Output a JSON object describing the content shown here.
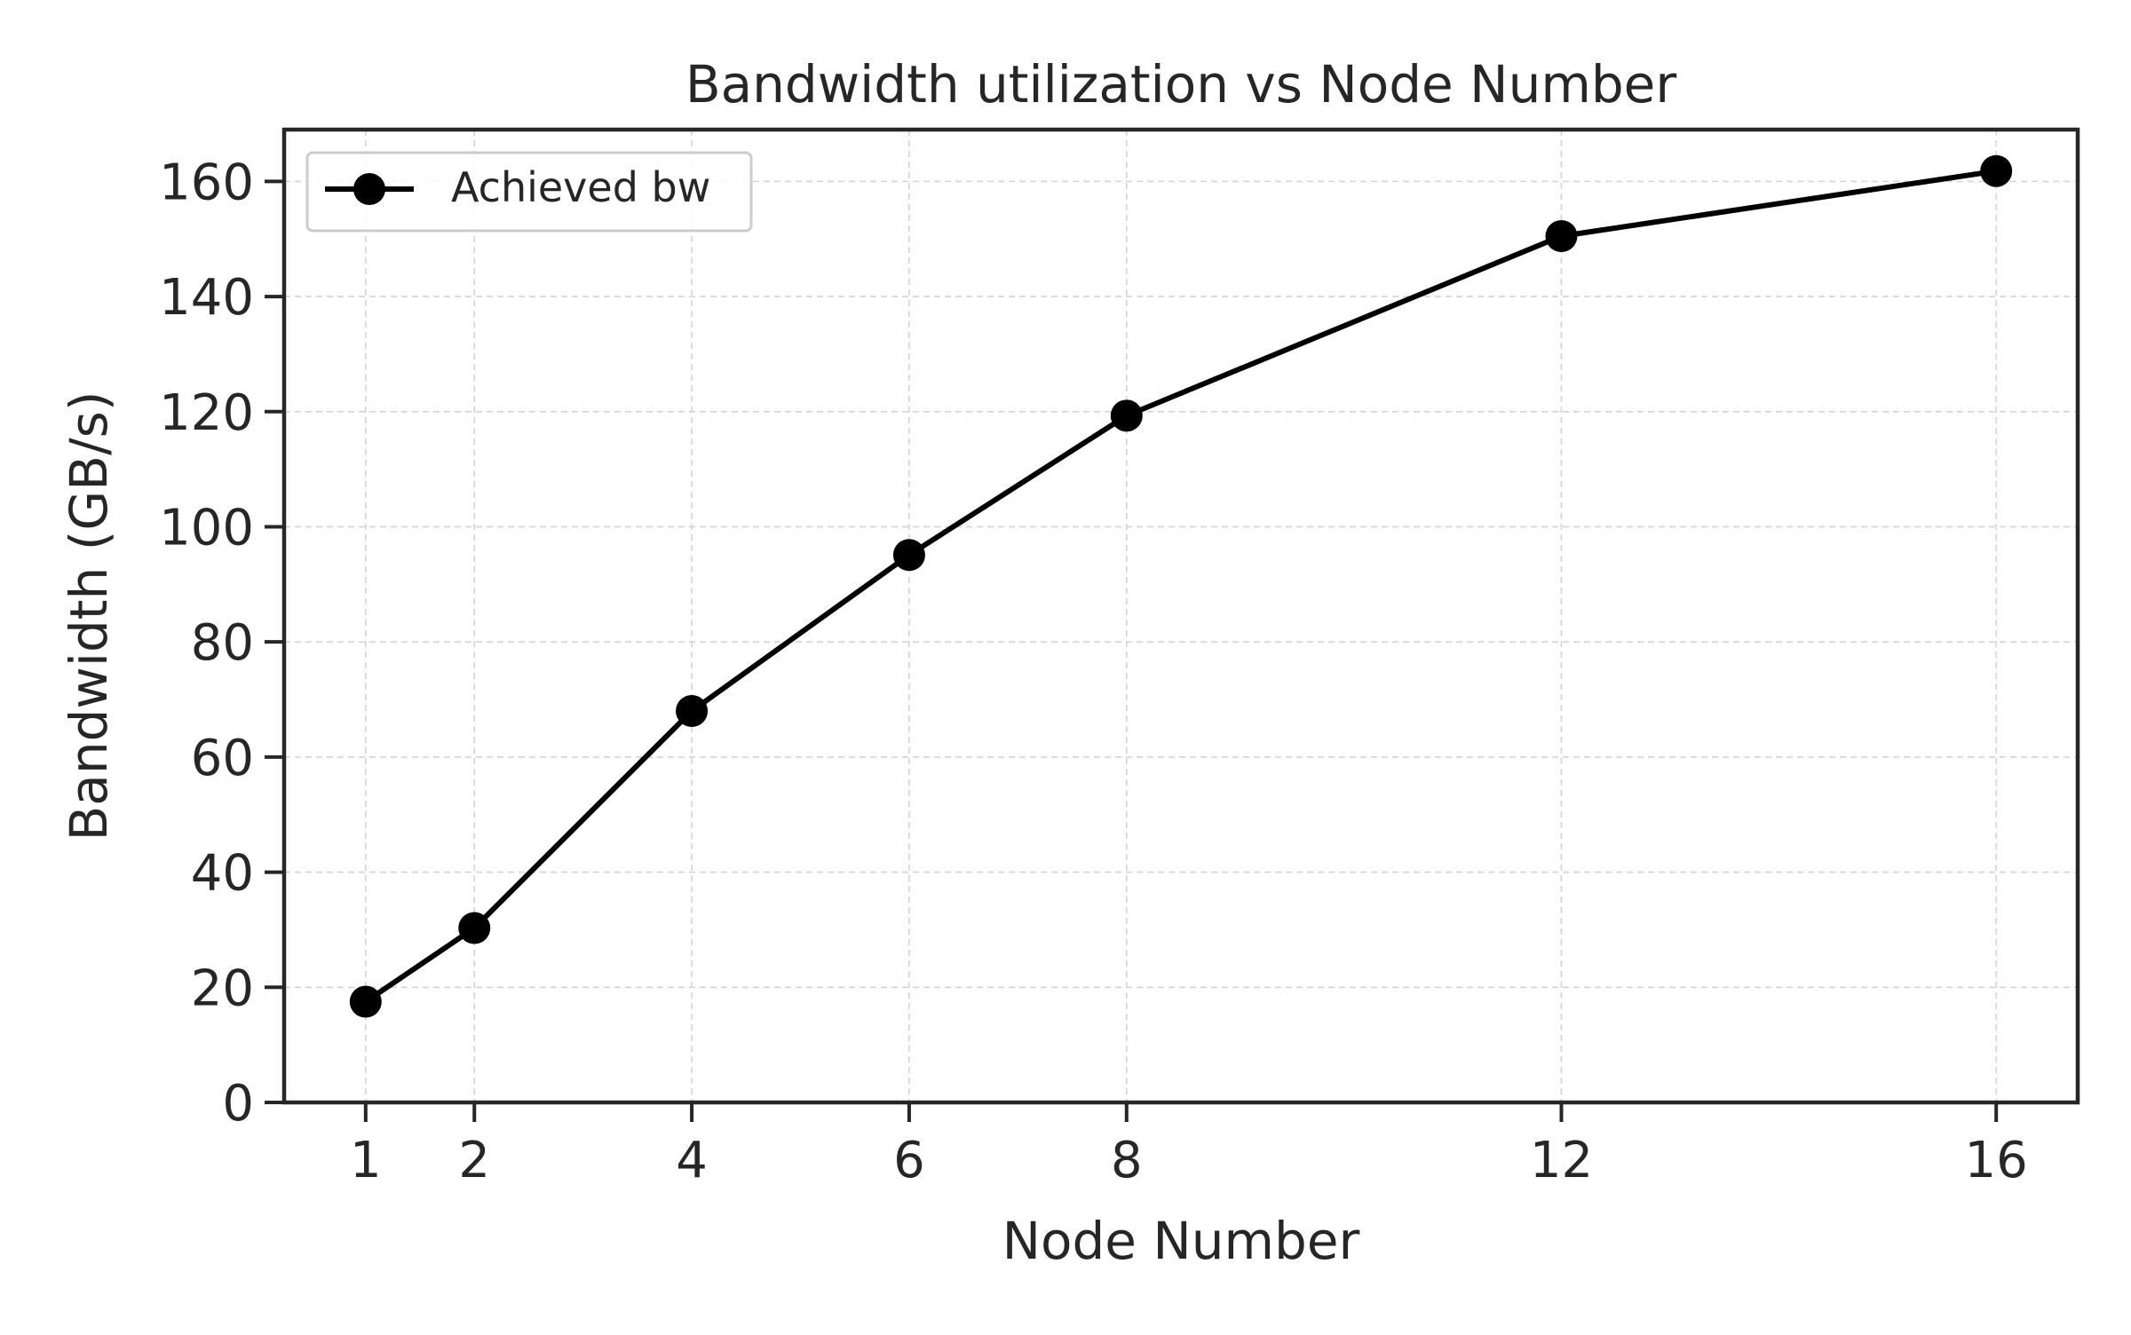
{
  "chart_data": {
    "type": "line",
    "title": "Bandwidth utilization vs Node Number",
    "xlabel": "Node Number",
    "ylabel": "Bandwidth (GB/s)",
    "x": [
      1,
      2,
      4,
      6,
      8,
      12,
      16
    ],
    "xticks": [
      "1",
      "2",
      "4",
      "6",
      "8",
      "12",
      "16"
    ],
    "yticks": [
      "0",
      "20",
      "40",
      "60",
      "80",
      "100",
      "120",
      "140",
      "160"
    ],
    "xlim": [
      0.25,
      16.75
    ],
    "ylim": [
      0,
      169
    ],
    "grid": true,
    "legend_position": "top-left",
    "series": [
      {
        "name": "Achieved bw",
        "values": [
          17.5,
          30.3,
          68.0,
          95.1,
          119.3,
          150.5,
          161.8
        ],
        "color": "#000000",
        "marker": "circle"
      }
    ]
  }
}
